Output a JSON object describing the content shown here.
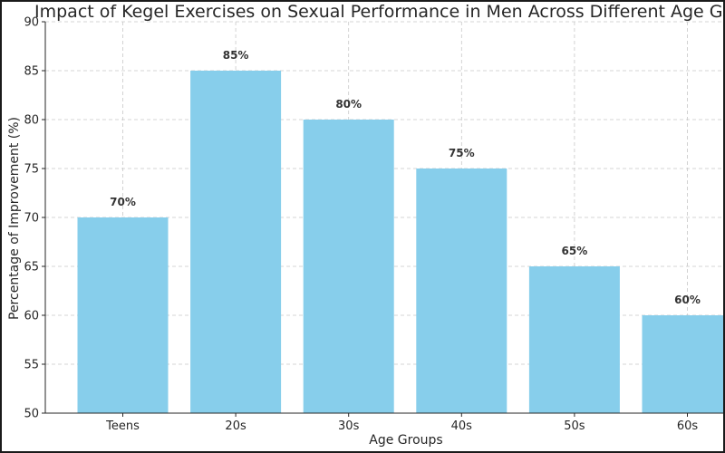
{
  "chart_data": {
    "type": "bar",
    "title": "Impact of Kegel Exercises on Sexual Performance in Men Across Different Age Groups",
    "xlabel": "Age Groups",
    "ylabel": "Percentage of Improvement (%)",
    "categories": [
      "Teens",
      "20s",
      "30s",
      "40s",
      "50s",
      "60s"
    ],
    "values": [
      70,
      85,
      80,
      75,
      65,
      60
    ],
    "data_labels": [
      "70%",
      "85%",
      "80%",
      "75%",
      "65%",
      "60%"
    ],
    "ylim": [
      50,
      90
    ],
    "yticks": [
      50,
      55,
      60,
      65,
      70,
      75,
      80,
      85,
      90
    ],
    "grid": true,
    "bar_color": "#87CEEB"
  }
}
